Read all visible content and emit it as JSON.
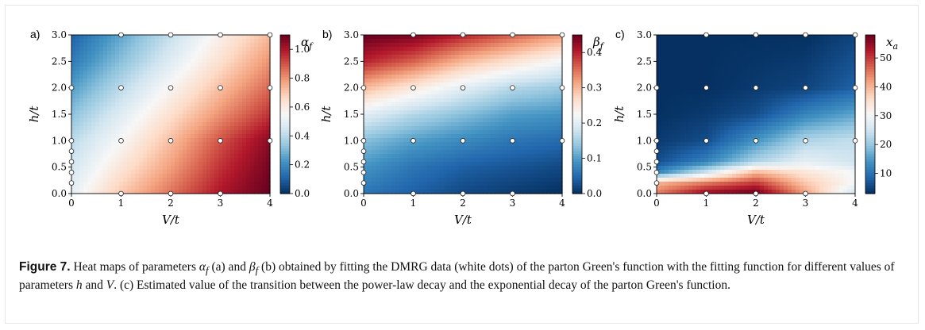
{
  "chart_data": [
    {
      "type": "heatmap",
      "panel_label": "a)",
      "xlabel": "V/t",
      "ylabel": "h/t",
      "xlim": [
        0,
        4
      ],
      "ylim": [
        0,
        3
      ],
      "xticks": [
        "0",
        "1",
        "2",
        "3",
        "4"
      ],
      "yticks": [
        "0.0",
        "0.5",
        "1.0",
        "1.5",
        "2.0",
        "2.5",
        "3.0"
      ],
      "colorbar_label": "α_f",
      "colorbar_range": [
        0.0,
        1.1
      ],
      "colorbar_ticks": [
        "0.0",
        "0.2",
        "0.4",
        "0.6",
        "0.8",
        "1.0"
      ],
      "colormap": "RdBu_r",
      "field": {
        "x": [
          0,
          1,
          2,
          3,
          4
        ],
        "y": [
          0.0,
          0.5,
          1.0,
          1.5,
          2.0,
          2.5,
          3.0
        ],
        "z": [
          [
            0.5,
            0.7,
            0.85,
            1.0,
            1.1
          ],
          [
            0.45,
            0.62,
            0.78,
            0.95,
            1.08
          ],
          [
            0.4,
            0.55,
            0.72,
            0.9,
            1.05
          ],
          [
            0.32,
            0.48,
            0.64,
            0.8,
            0.95
          ],
          [
            0.24,
            0.4,
            0.56,
            0.72,
            0.87
          ],
          [
            0.16,
            0.32,
            0.48,
            0.64,
            0.8
          ],
          [
            0.1,
            0.26,
            0.42,
            0.58,
            0.73
          ]
        ]
      },
      "data_points": [
        [
          1,
          3
        ],
        [
          2,
          3
        ],
        [
          3,
          3
        ],
        [
          4,
          3
        ],
        [
          0,
          2
        ],
        [
          1,
          2
        ],
        [
          2,
          2
        ],
        [
          3,
          2
        ],
        [
          4,
          2
        ],
        [
          0,
          1
        ],
        [
          1,
          1
        ],
        [
          2,
          1
        ],
        [
          3,
          1
        ],
        [
          4,
          1
        ],
        [
          0,
          0.8
        ],
        [
          0,
          0.6
        ],
        [
          0,
          0.4
        ],
        [
          0,
          0.2
        ],
        [
          1,
          0
        ],
        [
          2,
          0
        ],
        [
          3,
          0
        ]
      ]
    },
    {
      "type": "heatmap",
      "panel_label": "b)",
      "xlabel": "V/t",
      "ylabel": "h/t",
      "xlim": [
        0,
        4
      ],
      "ylim": [
        0,
        3
      ],
      "xticks": [
        "0",
        "1",
        "2",
        "3",
        "4"
      ],
      "yticks": [
        "0.0",
        "0.5",
        "1.0",
        "1.5",
        "2.0",
        "2.5",
        "3.0"
      ],
      "colorbar_label": "β_f",
      "colorbar_range": [
        0.0,
        0.45
      ],
      "colorbar_ticks": [
        "0.0",
        "0.1",
        "0.2",
        "0.3",
        "0.4"
      ],
      "colormap": "RdBu_r",
      "field": {
        "x": [
          0,
          1,
          2,
          3,
          4
        ],
        "y": [
          0.0,
          0.5,
          1.0,
          1.5,
          2.0,
          2.5,
          3.0
        ],
        "z": [
          [
            0.06,
            0.04,
            0.02,
            0.01,
            0.0
          ],
          [
            0.09,
            0.06,
            0.04,
            0.03,
            0.02
          ],
          [
            0.13,
            0.1,
            0.08,
            0.06,
            0.05
          ],
          [
            0.2,
            0.16,
            0.13,
            0.1,
            0.09
          ],
          [
            0.3,
            0.25,
            0.2,
            0.16,
            0.14
          ],
          [
            0.4,
            0.36,
            0.3,
            0.26,
            0.22
          ],
          [
            0.45,
            0.44,
            0.4,
            0.36,
            0.32
          ]
        ]
      },
      "data_points": [
        [
          1,
          3
        ],
        [
          2,
          3
        ],
        [
          3,
          3
        ],
        [
          4,
          3
        ],
        [
          0,
          2
        ],
        [
          1,
          2
        ],
        [
          2,
          2
        ],
        [
          3,
          2
        ],
        [
          4,
          2
        ],
        [
          0,
          1
        ],
        [
          1,
          1
        ],
        [
          2,
          1
        ],
        [
          3,
          1
        ],
        [
          4,
          1
        ],
        [
          0,
          0.8
        ],
        [
          0,
          0.6
        ],
        [
          0,
          0.4
        ],
        [
          0,
          0.2
        ],
        [
          1,
          0
        ],
        [
          2,
          0
        ],
        [
          3,
          0
        ]
      ]
    },
    {
      "type": "heatmap",
      "panel_label": "c)",
      "xlabel": "V/t",
      "ylabel": "h/t",
      "xlim": [
        0,
        4
      ],
      "ylim": [
        0,
        3
      ],
      "xticks": [
        "0",
        "1",
        "2",
        "3",
        "4"
      ],
      "yticks": [
        "0.0",
        "0.5",
        "1.0",
        "1.5",
        "2.0",
        "2.5",
        "3.0"
      ],
      "colorbar_label": "x_a",
      "colorbar_range": [
        3,
        58
      ],
      "colorbar_ticks": [
        "10",
        "20",
        "30",
        "40",
        "50"
      ],
      "colormap": "RdBu_r",
      "field": {
        "x": [
          0,
          1,
          2,
          3,
          4
        ],
        "y": [
          0.0,
          0.2,
          0.4,
          0.6,
          1.0,
          1.5,
          2.0,
          3.0
        ],
        "z": [
          [
            45,
            55,
            58,
            42,
            25
          ],
          [
            40,
            45,
            50,
            38,
            30
          ],
          [
            12,
            25,
            40,
            34,
            30
          ],
          [
            6,
            12,
            22,
            28,
            25
          ],
          [
            4,
            6,
            14,
            22,
            24
          ],
          [
            3,
            4,
            6,
            12,
            16
          ],
          [
            3,
            3,
            4,
            5,
            8
          ],
          [
            3,
            3,
            3,
            3,
            5
          ]
        ]
      },
      "data_points": [
        [
          1,
          3
        ],
        [
          2,
          3
        ],
        [
          3,
          3
        ],
        [
          4,
          3
        ],
        [
          0,
          2
        ],
        [
          1,
          2
        ],
        [
          2,
          2
        ],
        [
          3,
          2
        ],
        [
          4,
          2
        ],
        [
          0,
          1
        ],
        [
          1,
          1
        ],
        [
          2,
          1
        ],
        [
          3,
          1
        ],
        [
          4,
          1
        ],
        [
          0,
          0.8
        ],
        [
          0,
          0.6
        ],
        [
          0,
          0.4
        ],
        [
          0,
          0.2
        ],
        [
          1,
          0
        ],
        [
          2,
          0
        ],
        [
          3,
          0
        ]
      ]
    }
  ],
  "caption": {
    "label": "Figure 7.",
    "text_html": "Heat maps of parameters <i>α</i><sub><i>f</i></sub> (a) and <i>β</i><sub><i>f</i></sub> (b) obtained by fitting the DMRG data (white dots) of the parton Green's function with the fitting function for different values of parameters <i>h</i> and <i>V</i>. (c) Estimated value of the transition between the power-law decay and the exponential decay of the parton Green's function."
  }
}
